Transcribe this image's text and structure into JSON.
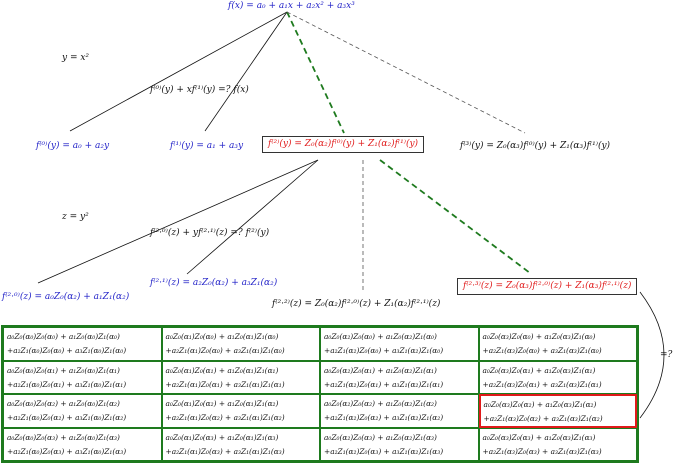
{
  "root": "f(x) = a₀ + a₁x + a₂x² + a₃x³",
  "sub1": "y = x²",
  "sub2": "z = y²",
  "rel1": "f⁽⁰⁾(y) + xf⁽¹⁾(y) =? f(x)",
  "rel2": "f⁽²·⁰⁾(z) + yf⁽²·¹⁾(z) =? f⁽²⁾(y)",
  "f0": "f⁽⁰⁾(y) = a₀ + a₂y",
  "f1": "f⁽¹⁾(y) = a₁ + a₃y",
  "f2": "f⁽²⁾(y) = Z₀(α₂)f⁽⁰⁾(y) + Z₁(α₂)f⁽¹⁾(y)",
  "f3": "f⁽³⁾(y) = Z₀(α₃)f⁽⁰⁾(y) + Z₁(α₃)f⁽¹⁾(y)",
  "f20": "f⁽²·⁰⁾(z) = a₀Z₀(α₂) + a₁Z₁(α₂)",
  "f21": "f⁽²·¹⁾(z) = a₂Z₀(α₂) + a₃Z₁(α₂)",
  "f22": "f⁽²·²⁾(z) = Z₀(α₂)f⁽²·⁰⁾(z) + Z₁(α₂)f⁽²·¹⁾(z)",
  "f23": "f⁽²·³⁾(z) = Z₀(α₃)f⁽²·⁰⁾(z) + Z₁(α₃)f⁽²·¹⁾(z)",
  "eq_mark": "=?",
  "highlight": {
    "row": 2,
    "col": 3
  },
  "colors": {
    "blue": "#2323c8",
    "red": "#e01a1a",
    "green": "#1e7a1e",
    "dash_green": "#1e7a1e"
  },
  "grid": [
    [
      [
        "a₀Z₀(α₀)Z₀(α₀) + a₁Z₀(α₀)Z₁(α₀)",
        "+a₂Z₁(α₀)Z₀(α₀) + a₃Z₁(α₀)Z₁(α₀)"
      ],
      [
        "a₀Z₀(α₁)Z₀(α₀) + a₁Z₀(α₁)Z₁(α₀)",
        "+a₂Z₁(α₁)Z₀(α₀) + a₃Z₁(α₁)Z₁(α₀)"
      ],
      [
        "a₀Z₀(α₂)Z₀(α₀) + a₁Z₀(α₂)Z₁(α₀)",
        "+a₂Z₁(α₂)Z₀(α₀) + a₃Z₁(α₂)Z₁(α₀)"
      ],
      [
        "a₀Z₀(α₃)Z₀(α₀) + a₁Z₀(α₃)Z₁(α₀)",
        "+a₂Z₁(α₃)Z₀(α₀) + a₃Z₁(α₃)Z₁(α₀)"
      ]
    ],
    [
      [
        "a₀Z₀(α₀)Z₀(α₁) + a₁Z₀(α₀)Z₁(α₁)",
        "+a₂Z₁(α₀)Z₀(α₁) + a₃Z₁(α₀)Z₁(α₁)"
      ],
      [
        "a₀Z₀(α₁)Z₀(α₁) + a₁Z₀(α₁)Z₁(α₁)",
        "+a₂Z₁(α₁)Z₀(α₁) + a₃Z₁(α₁)Z₁(α₁)"
      ],
      [
        "a₀Z₀(α₂)Z₀(α₁) + a₁Z₀(α₂)Z₁(α₁)",
        "+a₂Z₁(α₂)Z₀(α₁) + a₃Z₁(α₂)Z₁(α₁)"
      ],
      [
        "a₀Z₀(α₃)Z₀(α₁) + a₁Z₀(α₃)Z₁(α₁)",
        "+a₂Z₁(α₃)Z₀(α₁) + a₃Z₁(α₃)Z₁(α₁)"
      ]
    ],
    [
      [
        "a₀Z₀(α₀)Z₀(α₂) + a₁Z₀(α₀)Z₁(α₂)",
        "+a₂Z₁(α₀)Z₀(α₂) + a₃Z₁(α₀)Z₁(α₂)"
      ],
      [
        "a₀Z₀(α₁)Z₀(α₂) + a₁Z₀(α₁)Z₁(α₂)",
        "+a₂Z₁(α₁)Z₀(α₂) + a₃Z₁(α₁)Z₁(α₂)"
      ],
      [
        "a₀Z₀(α₂)Z₀(α₂) + a₁Z₀(α₂)Z₁(α₂)",
        "+a₂Z₁(α₂)Z₀(α₂) + a₃Z₁(α₂)Z₁(α₂)"
      ],
      [
        "a₀Z₀(α₃)Z₀(α₂) + a₁Z₀(α₃)Z₁(α₂)",
        "+a₂Z₁(α₃)Z₀(α₂) + a₃Z₁(α₃)Z₁(α₂)"
      ]
    ],
    [
      [
        "a₀Z₀(α₀)Z₀(α₃) + a₁Z₀(α₀)Z₁(α₃)",
        "+a₂Z₁(α₀)Z₀(α₃) + a₃Z₁(α₀)Z₁(α₃)"
      ],
      [
        "a₀Z₀(α₁)Z₀(α₃) + a₁Z₀(α₁)Z₁(α₃)",
        "+a₂Z₁(α₁)Z₀(α₃) + a₃Z₁(α₁)Z₁(α₃)"
      ],
      [
        "a₀Z₀(α₂)Z₀(α₃) + a₁Z₀(α₂)Z₁(α₃)",
        "+a₂Z₁(α₂)Z₀(α₃) + a₃Z₁(α₂)Z₁(α₃)"
      ],
      [
        "a₀Z₀(α₃)Z₀(α₃) + a₁Z₀(α₃)Z₁(α₃)",
        "+a₂Z₁(α₃)Z₀(α₃) + a₃Z₁(α₃)Z₁(α₃)"
      ]
    ]
  ]
}
